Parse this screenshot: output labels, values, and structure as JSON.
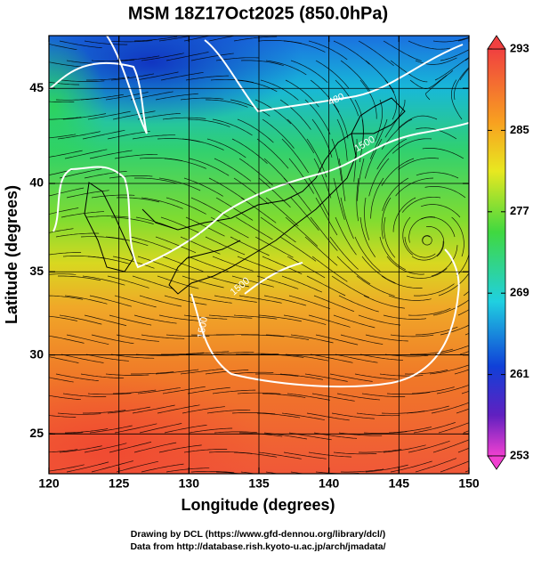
{
  "chart_data": {
    "type": "map",
    "title": "MSM 18Z17Oct2025 (850.0hPa)",
    "x_label": "Longitude (degrees)",
    "y_label": "Latitude  (degrees)",
    "xlim": [
      120,
      150
    ],
    "ylim": [
      22.4,
      47.6
    ],
    "xticks": [
      120,
      125,
      130,
      135,
      140,
      145,
      150
    ],
    "yticks": [
      25,
      30,
      35,
      40,
      45
    ],
    "projection": "mercator",
    "grid": true,
    "colorbar": {
      "lim": [
        253,
        293
      ],
      "ticks": [
        253,
        261,
        269,
        277,
        285,
        293
      ]
    },
    "contour_labels": [
      "480",
      "1500",
      "1500",
      "1500"
    ],
    "credits": [
      "Drawing by DCL (https://www.gfd-dennou.org/library/dcl/)",
      "Data from http://database.rish.kyoto-u.ac.jp/arch/jmadata/"
    ]
  }
}
